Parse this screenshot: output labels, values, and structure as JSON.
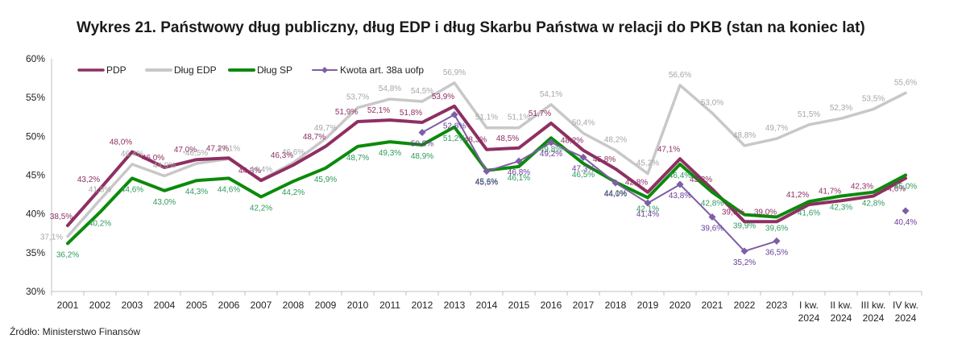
{
  "chart_data": {
    "type": "line",
    "title": "Wykres 21. Państwowy dług publiczny, dług EDP i dług Skarbu Państwa w relacji do PKB (stan na koniec lat)",
    "source": "Źródło: Ministerstwo Finansów",
    "categories": [
      "2001",
      "2002",
      "2003",
      "2004",
      "2005",
      "2006",
      "2007",
      "2008",
      "2009",
      "2010",
      "2011",
      "2012",
      "2013",
      "2014",
      "2015",
      "2016",
      "2017",
      "2018",
      "2019",
      "2020",
      "2021",
      "2022",
      "2023",
      "I kw.\n2024",
      "II kw.\n2024",
      "III kw.\n2024",
      "IV kw.\n2024"
    ],
    "ylim": [
      30,
      60
    ],
    "yticks": [
      "30%",
      "35%",
      "40%",
      "45%",
      "50%",
      "55%",
      "60%"
    ],
    "ytick_values": [
      30,
      35,
      40,
      45,
      50,
      55,
      60
    ],
    "grid": false,
    "legend_position": "top-left",
    "series": [
      {
        "name": "PDP",
        "color": "#8e2f62",
        "label_color": "#8e2f62",
        "marker": "none",
        "values": [
          38.5,
          43.2,
          48.0,
          46.0,
          47.0,
          47.2,
          44.3,
          46.3,
          48.7,
          51.9,
          52.1,
          51.8,
          53.9,
          48.3,
          48.5,
          51.7,
          48.2,
          45.8,
          42.8,
          47.1,
          43.2,
          39.0,
          39.0,
          41.2,
          41.7,
          42.3,
          44.6
        ],
        "labels": [
          "38,5%",
          "43,2%",
          "48,0%",
          "46,0%",
          "47,0%",
          "47,2%",
          "44,3%",
          "46,3%",
          "48,7%",
          "51,9%",
          "52,1%",
          "51,8%",
          "53,9%",
          "48,3%",
          "48,5%",
          "51,7%",
          "48,2%",
          "45,8%",
          "42,8%",
          "47,1%",
          "43,2%",
          "39,0%",
          "39,0%",
          "41,2%",
          "41,7%",
          "42,3%",
          "44,6%"
        ]
      },
      {
        "name": "Dług EDP",
        "color": "#c8c8c8",
        "label_color": "#a6a6a6",
        "marker": "none",
        "values": [
          37.1,
          41.8,
          46.4,
          44.9,
          46.5,
          47.1,
          44.4,
          46.6,
          49.7,
          53.7,
          54.8,
          54.5,
          56.9,
          51.1,
          51.1,
          54.1,
          50.4,
          48.2,
          45.2,
          56.6,
          53.0,
          48.8,
          49.7,
          51.5,
          52.3,
          53.5,
          55.6
        ],
        "labels": [
          "37,1%",
          "41,8%",
          "46,4%",
          "44,9%",
          "46,5%",
          "47,1%",
          "44,4%",
          "46,6%",
          "49,7%",
          "53,7%",
          "54,8%",
          "54,5%",
          "56,9%",
          "51,1%",
          "51,1%",
          "54,1%",
          "50,4%",
          "48,2%",
          "45,2%",
          "56,6%",
          "53,0%",
          "48,8%",
          "49,7%",
          "51,5%",
          "52,3%",
          "53,5%",
          "55,6%"
        ]
      },
      {
        "name": "Dług SP",
        "color": "#0b8a0b",
        "label_color": "#2e9a5c",
        "marker": "none",
        "values": [
          36.2,
          40.2,
          44.6,
          43.0,
          44.3,
          44.6,
          42.2,
          44.2,
          45.9,
          48.7,
          49.3,
          48.9,
          51.2,
          45.6,
          46.1,
          49.8,
          46.5,
          44.1,
          42.1,
          46.4,
          42.8,
          39.9,
          39.6,
          41.6,
          42.3,
          42.8,
          45.0
        ],
        "labels": [
          "36,2%",
          "40,2%",
          "44,6%",
          "43,0%",
          "44,3%",
          "44,6%",
          "42,2%",
          "44,2%",
          "45,9%",
          "48,7%",
          "49,3%",
          "48,9%",
          "51,2%",
          "45,6%",
          "46,1%",
          "49,8%",
          "46,5%",
          "44,1%",
          "42,1%",
          "46,4%",
          "42,8%",
          "39,9%",
          "39,6%",
          "41,6%",
          "42,3%",
          "42,8%",
          "45,0%"
        ]
      },
      {
        "name": "Kwota art. 38a uofp",
        "color": "#7e5ea6",
        "label_color": "#6a3d9a",
        "marker": "diamond",
        "values": [
          null,
          null,
          null,
          null,
          null,
          null,
          null,
          null,
          null,
          null,
          null,
          50.5,
          52.8,
          45.5,
          46.8,
          49.2,
          47.3,
          44.0,
          41.4,
          43.8,
          39.6,
          35.2,
          36.5,
          null,
          null,
          null,
          40.4
        ],
        "labels": [
          null,
          null,
          null,
          null,
          null,
          null,
          null,
          null,
          null,
          null,
          null,
          "50,5%",
          "52,8%",
          "45,5%",
          "46,8%",
          "49,2%",
          "47,3%",
          "44,0%",
          "41,4%",
          "43,8%",
          "39,6%",
          "35,2%",
          "36,5%",
          null,
          null,
          null,
          "40,4%"
        ]
      }
    ]
  }
}
